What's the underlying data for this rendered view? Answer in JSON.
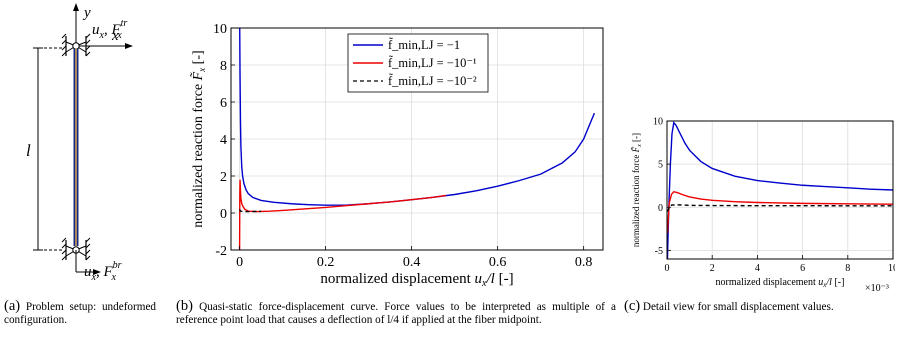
{
  "panel_a": {
    "labels": {
      "y": "y",
      "x": "x",
      "l": "l",
      "u_top": "u",
      "u_top_sub": "x",
      "f_top": "F",
      "f_top_sub": "x",
      "f_top_sup": "tr",
      "u_bot": "u",
      "u_bot_sub": "x",
      "f_bot": "F",
      "f_bot_sub": "x",
      "f_bot_sup": "br"
    },
    "colors": {
      "fiber": "#1a2a8c",
      "fiber_core": "#e8b040"
    }
  },
  "captions": {
    "a_label": "(a)",
    "a_text": "Problem setup: undeformed configuration.",
    "b_label": "(b)",
    "b_text": "Quasi-static force-displacement curve. Force values to be interpreted as multiple of a reference point load that causes a deflection of l/4 if applied at the fiber midpoint.",
    "c_label": "(c)",
    "c_text": "Detail view for small displacement values."
  },
  "chart_data": [
    {
      "type": "line",
      "xlabel": "normalized displacement u_x/l [-]",
      "ylabel": "normalized reaction force F̃_x [-]",
      "xlim": [
        -0.02,
        0.845
      ],
      "ylim": [
        -2,
        10
      ],
      "xticks": [
        0,
        0.2,
        0.4,
        0.6,
        0.8
      ],
      "xtick_labels": [
        "0",
        "0.2",
        "0.4",
        "0.6",
        "0.8"
      ],
      "yticks": [
        -2,
        0,
        2,
        4,
        6,
        8,
        10
      ],
      "ytick_labels": [
        "-2",
        "0",
        "2",
        "4",
        "6",
        "8",
        "10"
      ],
      "grid": true,
      "legend": "top-center",
      "legend_entries": [
        "f̃_min,LJ = −1",
        "f̃_min,LJ = −10⁻¹",
        "f̃_min,LJ = −10⁻²"
      ],
      "series": [
        {
          "name": "f̃_min,LJ = −1",
          "color": "#0000cc",
          "dash": "solid",
          "x": [
            0.0003,
            0.001,
            0.002,
            0.003,
            0.005,
            0.007,
            0.01,
            0.015,
            0.02,
            0.03,
            0.05,
            0.08,
            0.12,
            0.16,
            0.2,
            0.25,
            0.3,
            0.35,
            0.4,
            0.45,
            0.5,
            0.55,
            0.6,
            0.65,
            0.7,
            0.75,
            0.78,
            0.8,
            0.825
          ],
          "y": [
            10,
            7.5,
            5.0,
            3.6,
            2.5,
            2.0,
            1.6,
            1.25,
            1.05,
            0.85,
            0.68,
            0.58,
            0.5,
            0.45,
            0.42,
            0.43,
            0.5,
            0.6,
            0.72,
            0.85,
            1.0,
            1.2,
            1.45,
            1.75,
            2.1,
            2.7,
            3.3,
            4.0,
            5.4
          ]
        },
        {
          "name": "f̃_min,LJ = −10⁻¹",
          "color": "#ee0000",
          "dash": "solid",
          "x": [
            0,
            0.0005,
            0.001,
            0.002,
            0.003,
            0.005,
            0.008,
            0.012,
            0.02,
            0.04,
            0.07,
            0.1,
            0.15,
            0.2,
            0.25,
            0.3,
            0.35,
            0.4,
            0.45,
            0.48
          ],
          "y": [
            -2,
            1.0,
            1.8,
            1.2,
            0.8,
            0.5,
            0.35,
            0.2,
            0.1,
            0.08,
            0.1,
            0.14,
            0.22,
            0.3,
            0.4,
            0.5,
            0.6,
            0.72,
            0.85,
            0.95
          ]
        },
        {
          "name": "f̃_min,LJ = −10⁻²",
          "color": "#000000",
          "dash": "dashed",
          "x": [
            0.0001,
            0.002,
            0.01,
            0.03,
            0.05
          ],
          "y": [
            0.2,
            0.1,
            0.08,
            0.08,
            0.09
          ]
        }
      ]
    },
    {
      "type": "line",
      "xlabel": "normalized displacement u_x/l [-]",
      "ylabel": "normalized reaction force F̃_x [-]",
      "x_multiplier": "×10⁻³",
      "xlim": [
        0,
        10
      ],
      "ylim": [
        -6,
        10
      ],
      "xticks": [
        0,
        2,
        4,
        6,
        8,
        10
      ],
      "xtick_labels": [
        "0",
        "2",
        "4",
        "6",
        "8",
        "10"
      ],
      "yticks": [
        -5,
        0,
        5,
        10
      ],
      "ytick_labels": [
        "-5",
        "0",
        "5",
        "10"
      ],
      "grid": true,
      "series": [
        {
          "name": "f̃_min,LJ = −1",
          "color": "#0000cc",
          "dash": "solid",
          "x": [
            0.02,
            0.08,
            0.15,
            0.22,
            0.3,
            0.4,
            0.55,
            0.8,
            1.0,
            1.5,
            2.0,
            3.0,
            4.0,
            5.0,
            6.0,
            7.0,
            8.0,
            9.0,
            10.0
          ],
          "y": [
            -6,
            0,
            5,
            8.5,
            9.8,
            9.5,
            8.7,
            7.4,
            6.6,
            5.3,
            4.5,
            3.6,
            3.1,
            2.8,
            2.55,
            2.4,
            2.25,
            2.1,
            2.0
          ]
        },
        {
          "name": "f̃_min,LJ = −10⁻¹",
          "color": "#ee0000",
          "dash": "solid",
          "x": [
            0.02,
            0.1,
            0.2,
            0.3,
            0.45,
            0.7,
            1.0,
            1.5,
            2.0,
            3.0,
            4.0,
            5.0,
            6.0,
            8.0,
            10.0
          ],
          "y": [
            -3,
            0.5,
            1.5,
            1.8,
            1.7,
            1.45,
            1.2,
            0.95,
            0.8,
            0.65,
            0.55,
            0.5,
            0.45,
            0.4,
            0.35
          ]
        },
        {
          "name": "f̃_min,LJ = −10⁻²",
          "color": "#000000",
          "dash": "dashed",
          "x": [
            0.0,
            0.2,
            0.4,
            0.6,
            1.0,
            2.0,
            4.0,
            6.0,
            8.0,
            10.0
          ],
          "y": [
            -0.5,
            0.25,
            0.28,
            0.27,
            0.22,
            0.2,
            0.18,
            0.18,
            0.17,
            0.17
          ]
        }
      ]
    }
  ]
}
